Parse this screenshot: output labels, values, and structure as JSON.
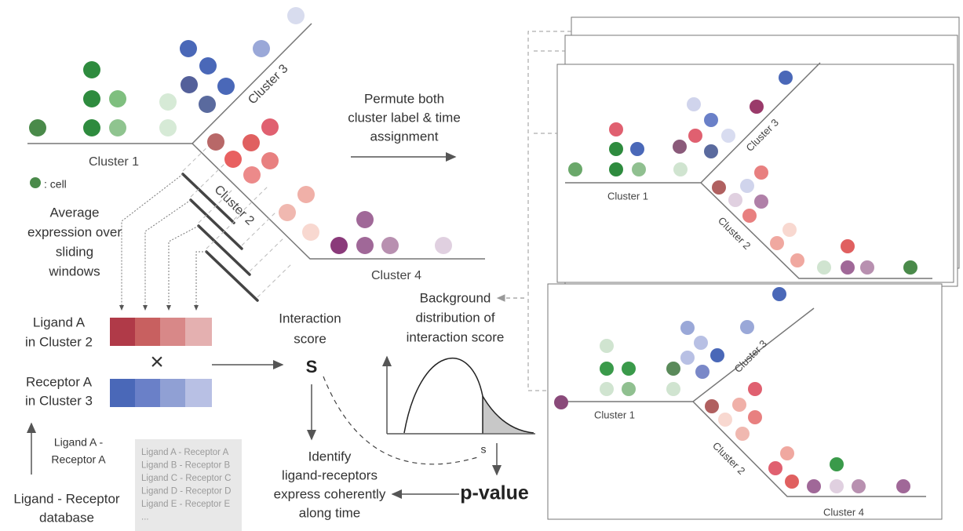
{
  "left_diagram": {
    "cluster_1": "Cluster 1",
    "cluster_2": "Cluster 2",
    "cluster_3": "Cluster 3",
    "cluster_4": "Cluster 4",
    "legend": ": cell"
  },
  "sliding_windows": [
    "Average",
    "expression over",
    "sliding",
    "windows"
  ],
  "ligand_label": [
    "Ligand A",
    "in Cluster 2"
  ],
  "times": "×",
  "receptor_label": [
    "Receptor A",
    "in Cluster 3"
  ],
  "interaction_score": [
    "Interaction",
    "score"
  ],
  "score_symbol": "S",
  "permute": [
    "Permute both",
    "cluster label & time",
    "assignment"
  ],
  "background": [
    "Background",
    "distribution of",
    "interaction score"
  ],
  "distribution_s": "s",
  "p_value": "p-value",
  "identify": [
    "Identify",
    "ligand-receptors",
    "express coherently",
    "along time"
  ],
  "pair_arrow": [
    "Ligand A -",
    "Receptor A"
  ],
  "database": [
    "Ligand - Receptor",
    "database"
  ],
  "database_list": [
    "Ligand A - Receptor A",
    "Ligand B - Receptor B",
    "Ligand C - Receptor C",
    "Ligand D - Receptor D",
    "Ligand E - Receptor E",
    "..."
  ],
  "panel_top": {
    "cluster_1": "Cluster 1",
    "cluster_2": "Cluster 2",
    "cluster_3": "Cluster 3"
  },
  "panel_bottom": {
    "cluster_1": "Cluster 1",
    "cluster_2": "Cluster 2",
    "cluster_3": "Cluster 3",
    "cluster_4": "Cluster 4"
  }
}
